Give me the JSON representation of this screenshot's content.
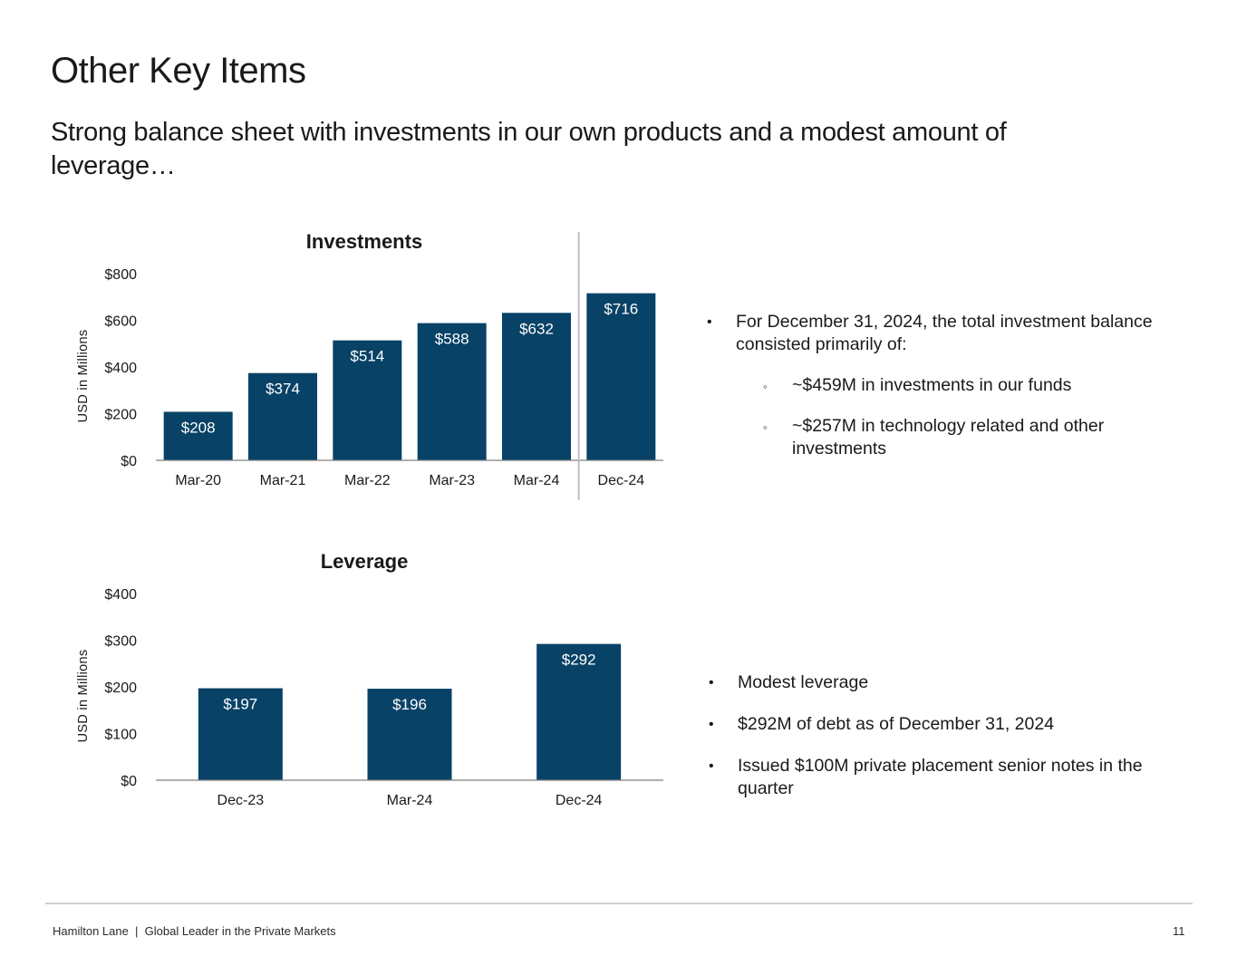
{
  "header": {
    "title": "Other Key Items",
    "subtitle": "Strong balance sheet with investments in our own products and a modest amount of leverage…"
  },
  "colors": {
    "bar": "#084266",
    "axis": "#7f7f7f",
    "divider": "#bfbfbf",
    "label_inside": "#ffffff"
  },
  "chart_data": [
    {
      "id": "investments",
      "type": "bar",
      "title": "Investments",
      "ylabel": "USD in Millions",
      "xlabel": "",
      "categories": [
        "Mar-20",
        "Mar-21",
        "Mar-22",
        "Mar-23",
        "Mar-24",
        "Dec-24"
      ],
      "values": [
        208,
        374,
        514,
        588,
        632,
        716
      ],
      "data_labels": [
        "$208",
        "$374",
        "$514",
        "$588",
        "$632",
        "$716"
      ],
      "ylim": [
        0,
        800
      ],
      "yticks": [
        0,
        200,
        400,
        600,
        800
      ],
      "ytick_labels": [
        "$0",
        "$200",
        "$400",
        "$600",
        "$800"
      ],
      "divider_after_category": "Mar-24",
      "grid": false
    },
    {
      "id": "leverage",
      "type": "bar",
      "title": "Leverage",
      "ylabel": "USD in Millions",
      "xlabel": "",
      "categories": [
        "Dec-23",
        "Mar-24",
        "Dec-24"
      ],
      "values": [
        197,
        196,
        292
      ],
      "data_labels": [
        "$197",
        "$196",
        "$292"
      ],
      "ylim": [
        0,
        400
      ],
      "yticks": [
        0,
        100,
        200,
        300,
        400
      ],
      "ytick_labels": [
        "$0",
        "$100",
        "$200",
        "$300",
        "$400"
      ],
      "grid": false
    }
  ],
  "investments_notes": {
    "main": "For December 31, 2024, the total investment balance consisted primarily of:",
    "sub": [
      "~$459M in investments in our funds",
      "~$257M in technology related and other investments"
    ]
  },
  "leverage_notes": [
    "Modest leverage",
    "$292M of debt as of December 31, 2024",
    "Issued $100M private placement senior notes in the quarter"
  ],
  "bullet_symbol": "•",
  "sub_bullet_symbol": "◦",
  "footer": {
    "text": "Hamilton Lane  |  Global Leader in the Private Markets",
    "page": "11"
  }
}
